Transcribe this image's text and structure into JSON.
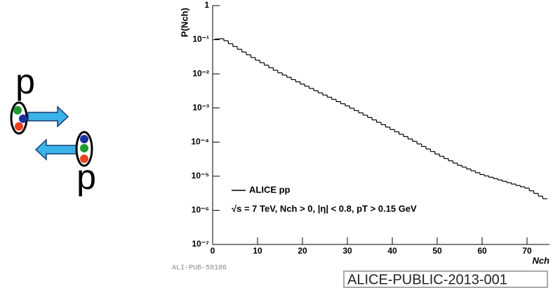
{
  "chart_data": {
    "type": "histogram",
    "ylabel": "P(Nch)",
    "xlabel": "Nch",
    "legend": "ALICE pp",
    "annotation": "√s = 7 TeV, Nch > 0, |η| < 0.8, pT > 0.15 GeV",
    "color": "#000000",
    "log_y": true,
    "bins": [
      0.5,
      1.5,
      2.5,
      3.5,
      4.5,
      5.5,
      6.5,
      7.5,
      8.5,
      9.5,
      10.5,
      11.5,
      12.5,
      13.5,
      14.5,
      15.5,
      16.5,
      17.5,
      18.5,
      19.5,
      20.5,
      21.5,
      22.5,
      23.5,
      24.5,
      25.5,
      26.5,
      27.5,
      28.5,
      29.5,
      30.5,
      31.5,
      32.5,
      33.5,
      34.5,
      35.5,
      36.5,
      37.5,
      38.5,
      39.5,
      40.5,
      41.5,
      42.5,
      43.5,
      44.5,
      45.5,
      46.5,
      47.5,
      48.5,
      49.5,
      50.5,
      51.5,
      52.5,
      53.5,
      54.5,
      55.5,
      56.5,
      57.5,
      58.5,
      59.5,
      60.5,
      61.5,
      62.5,
      63.5,
      64.5,
      65.5,
      66.5,
      67.5,
      68.5,
      69.5,
      70.5,
      71.5,
      72.5,
      73.5,
      74.5
    ],
    "values": [
      0.105,
      0.107,
      0.0933,
      0.0767,
      0.0631,
      0.0525,
      0.0437,
      0.0363,
      0.0302,
      0.0251,
      0.0212,
      0.0179,
      0.0151,
      0.0127,
      0.0107,
      0.0092,
      0.00791,
      0.00679,
      0.00583,
      0.00501,
      0.00433,
      0.00373,
      0.00322,
      0.00278,
      0.0024,
      0.00207,
      0.00179,
      0.00154,
      0.00133,
      0.00115,
      0.000982,
      0.000839,
      0.000718,
      0.000614,
      0.000525,
      0.000447,
      0.00038,
      0.000324,
      0.000275,
      0.000234,
      0.0002,
      0.00017,
      0.000145,
      0.000123,
      0.000105,
      8.83e-05,
      7.45e-05,
      6.28e-05,
      5.3e-05,
      4.47e-05,
      3.84e-05,
      3.3e-05,
      2.83e-05,
      2.43e-05,
      2.09e-05,
      1.85e-05,
      1.63e-05,
      1.44e-05,
      1.27e-05,
      1.12e-05,
      1.02e-05,
      9.33e-06,
      8.51e-06,
      7.76e-06,
      7.08e-06,
      6.46e-06,
      5.89e-06,
      5.37e-06,
      4.9e-06,
      4.47e-06,
      3.74e-06,
      3.13e-06,
      2.61e-06,
      2.19e-06
    ],
    "xlim": [
      0,
      75
    ],
    "xticks": [
      0,
      10,
      20,
      30,
      40,
      50,
      60,
      70
    ],
    "ylim": [
      1e-07,
      1
    ],
    "yticks": [
      {
        "value": 1e-07,
        "label": "10⁻⁷"
      },
      {
        "value": 1e-06,
        "label": "10⁻⁶"
      },
      {
        "value": 1e-05,
        "label": "10⁻⁵"
      },
      {
        "value": 0.0001,
        "label": "10⁻⁴"
      },
      {
        "value": 0.001,
        "label": "10⁻³"
      },
      {
        "value": 0.01,
        "label": "10⁻²"
      },
      {
        "value": 0.1,
        "label": "10⁻¹"
      },
      1
    ]
  },
  "watermark": "ALI-PUB-59106",
  "document_id": "ALICE-PUBLIC-2013-001",
  "diagram_labels": [
    "p",
    "p"
  ]
}
